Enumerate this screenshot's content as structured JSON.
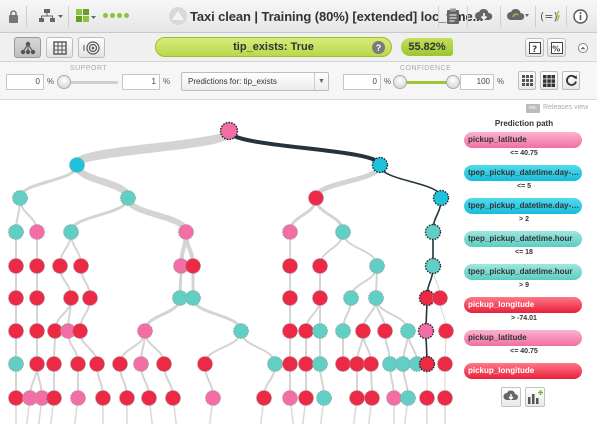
{
  "topbar": {
    "title": "Taxi clean | Training (80%) [extended] loc_time..."
  },
  "prediction": {
    "label": "tip_exists: True",
    "confidence": "55.82%",
    "help": "?"
  },
  "filters": {
    "support_label": "SUPPORT",
    "support_min": "0",
    "support_max": "1",
    "confidence_label": "CONFIDENCE",
    "confidence_min": "0",
    "confidence_max": "100",
    "pct": "%",
    "select_value": "Predictions for: tip_exists",
    "support_fill": 0.0,
    "confidence_fill": 1.0
  },
  "main": {
    "esc_label": "esc",
    "releases_label": "Releases view",
    "path_title": "Prediction path",
    "path": [
      {
        "field": "pickup_latitude",
        "color": "pink",
        "cond": "<= 40.75"
      },
      {
        "field": "tpep_pickup_datetime.day-o...",
        "color": "cyan",
        "cond": "<= 5"
      },
      {
        "field": "tpep_pickup_datetime.day-o...",
        "color": "cyan",
        "cond": "> 2"
      },
      {
        "field": "tpep_pickup_datetime.hour",
        "color": "teal",
        "cond": "<= 18"
      },
      {
        "field": "tpep_pickup_datetime.hour",
        "color": "teal",
        "cond": "> 9"
      },
      {
        "field": "pickup_longitude",
        "color": "red",
        "cond": "> -74.01"
      },
      {
        "field": "pickup_latitude",
        "color": "pink",
        "cond": "<= 40.75"
      },
      {
        "field": "pickup_longitude",
        "color": "red",
        "cond": ""
      }
    ]
  },
  "colors": {
    "pink": "#f26ea4",
    "cyan": "#1fc2dd",
    "teal": "#62cfc4",
    "red": "#ec2a45",
    "path": "#22343d",
    "accent": "#9cc531"
  }
}
